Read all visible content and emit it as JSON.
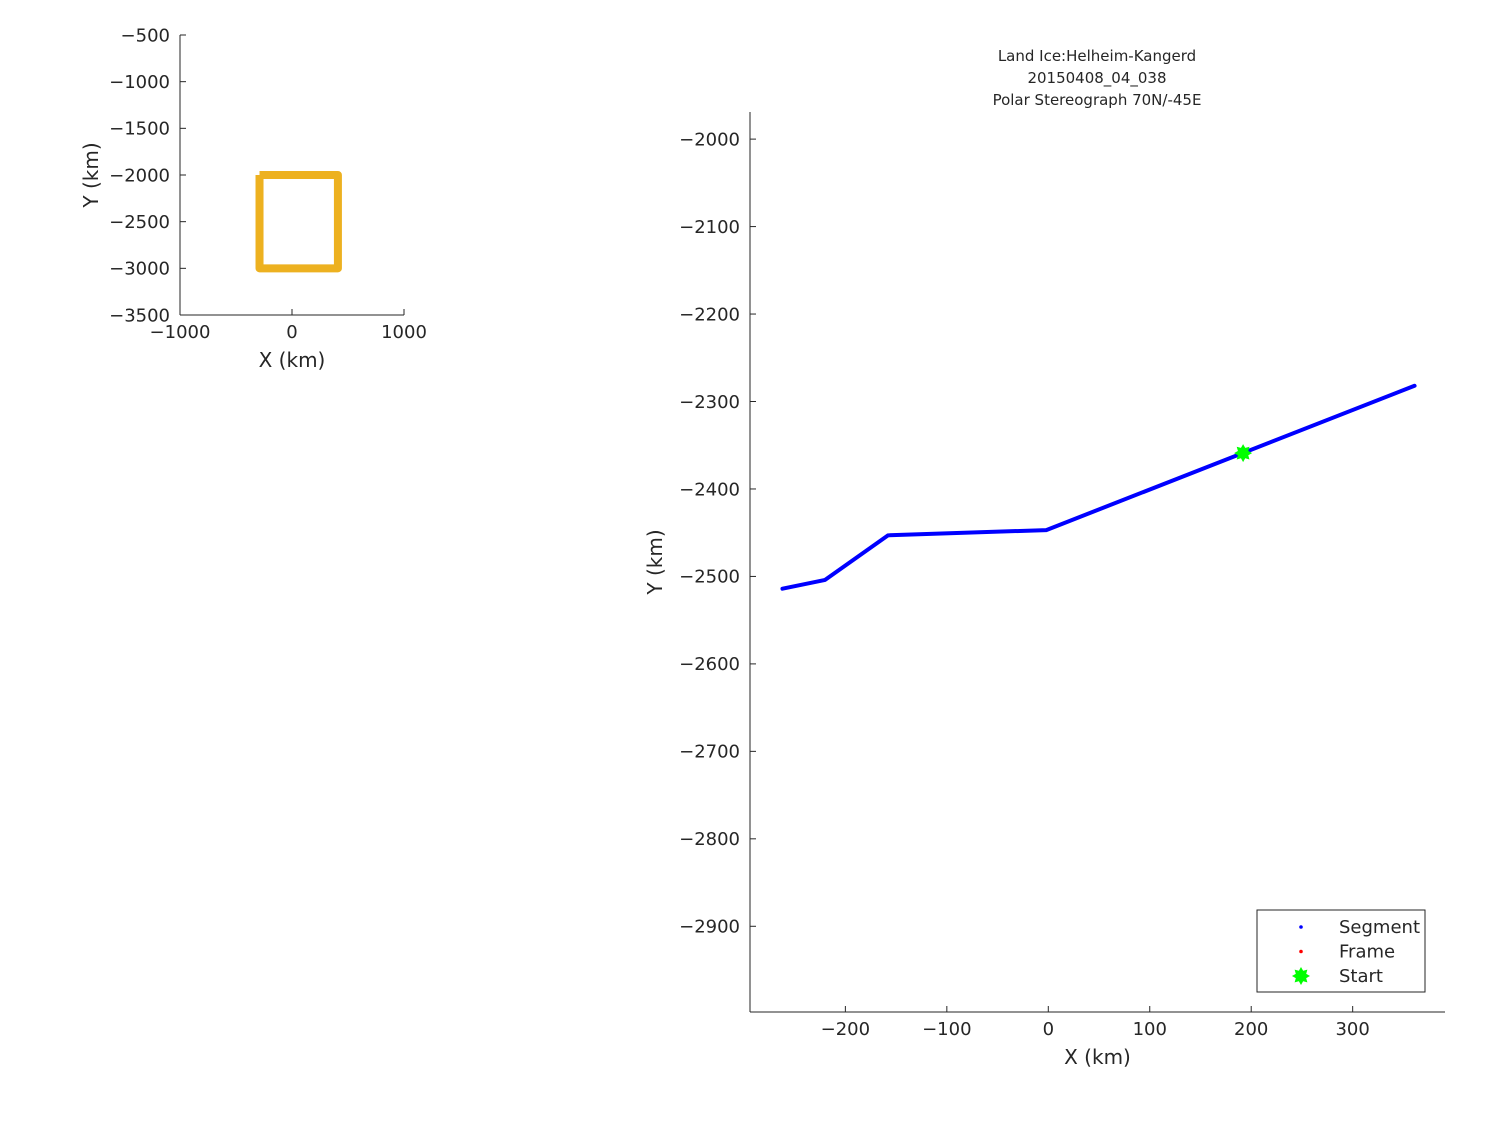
{
  "chart_data": [
    {
      "type": "line",
      "title": "",
      "xlabel": "X (km)",
      "ylabel": "Y (km)",
      "xlim": [
        -1000,
        1000
      ],
      "ylim": [
        -3500,
        -500
      ],
      "xticks": [
        -1000,
        0,
        1000
      ],
      "yticks": [
        -500,
        -1000,
        -1500,
        -2000,
        -2500,
        -3000,
        -3500
      ],
      "grid": false,
      "series": [
        {
          "color": "#EDB120",
          "x": [
            -290,
            410,
            410,
            -290,
            -290
          ],
          "y": [
            -2000,
            -2000,
            -3000,
            -3000,
            -2000
          ]
        }
      ]
    },
    {
      "type": "line",
      "title": [
        "Land Ice:Helheim-Kangerd",
        "20150408_04_038",
        "Polar Stereograph 70N/-45E"
      ],
      "xlabel": "X (km)",
      "ylabel": "Y (km)",
      "xlim": [
        -294,
        391
      ],
      "ylim": [
        -2998,
        -1969
      ],
      "xticks": [
        -200,
        -100,
        0,
        100,
        200,
        300
      ],
      "yticks": [
        -2000,
        -2100,
        -2200,
        -2300,
        -2400,
        -2500,
        -2600,
        -2700,
        -2800,
        -2900
      ],
      "grid": false,
      "legend_placement": "bottom-right",
      "series": [
        {
          "name": "Segment",
          "color": "#0000FF",
          "x": [
            -262,
            -220,
            -158,
            -2,
            361
          ],
          "y": [
            -2514,
            -2504,
            -2453,
            -2447,
            -2282
          ]
        },
        {
          "name": "Frame",
          "color": "#FF0000",
          "x": [],
          "y": []
        },
        {
          "name": "Start",
          "color": "#00FF00",
          "marker": "star",
          "x": [
            192
          ],
          "y": [
            -2359
          ]
        }
      ]
    }
  ]
}
